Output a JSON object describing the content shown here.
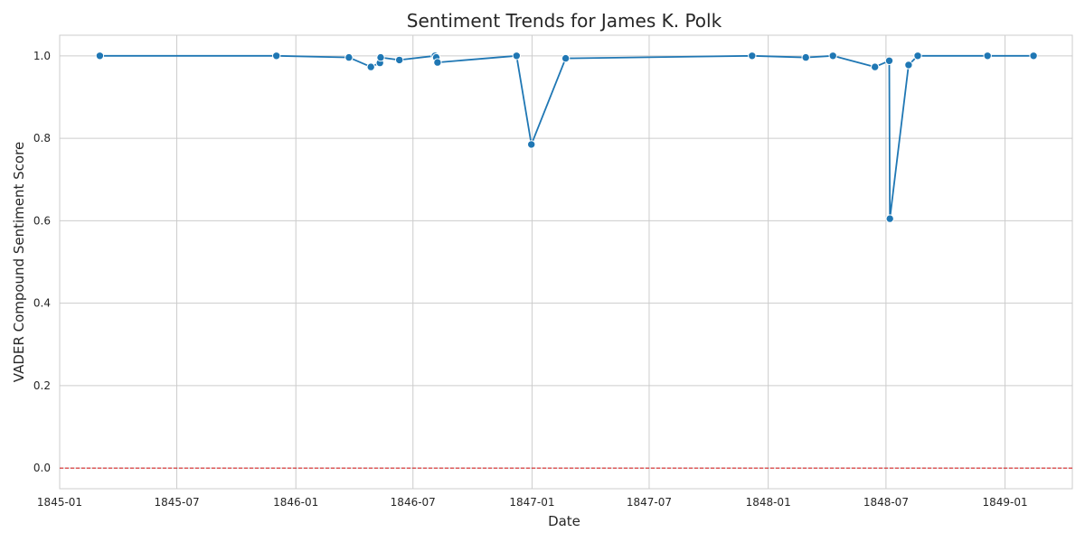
{
  "chart_data": {
    "type": "line",
    "title": "Sentiment Trends for James K. Polk",
    "xlabel": "Date",
    "ylabel": "VADER Compound Sentiment Score",
    "x_axis_type": "date",
    "xlim": [
      "1845-01-01",
      "1849-04-15"
    ],
    "ylim": [
      -0.05,
      1.05
    ],
    "x_ticks": [
      "1845-01",
      "1845-07",
      "1846-01",
      "1846-07",
      "1847-01",
      "1847-07",
      "1848-01",
      "1848-07",
      "1849-01"
    ],
    "y_ticks": [
      0.0,
      0.2,
      0.4,
      0.6,
      0.8,
      1.0
    ],
    "y_tick_labels": [
      "0.0",
      "0.2",
      "0.4",
      "0.6",
      "0.8",
      "1.0"
    ],
    "grid": true,
    "reference_line": {
      "y": 0.0,
      "style": "dashed",
      "color": "#d62728"
    },
    "series": [
      {
        "color": "#1f77b4",
        "marker": "circle",
        "x": [
          "1845-03-04",
          "1845-12-02",
          "1846-03-24",
          "1846-04-27",
          "1846-05-11",
          "1846-05-12",
          "1846-06-10",
          "1846-08-04",
          "1846-08-06",
          "1846-08-08",
          "1846-12-08",
          "1846-12-31",
          "1847-02-22",
          "1847-12-07",
          "1848-02-28",
          "1848-04-10",
          "1848-06-14",
          "1848-07-06",
          "1848-07-07",
          "1848-08-05",
          "1848-08-19",
          "1848-12-05",
          "1849-02-14"
        ],
        "y": [
          1.0,
          1.0,
          0.996,
          0.973,
          0.983,
          0.996,
          0.99,
          1.0,
          0.996,
          0.984,
          1.0,
          0.785,
          0.994,
          1.0,
          0.996,
          1.0,
          0.973,
          0.988,
          0.605,
          0.978,
          1.0,
          1.0,
          1.0
        ]
      }
    ]
  }
}
